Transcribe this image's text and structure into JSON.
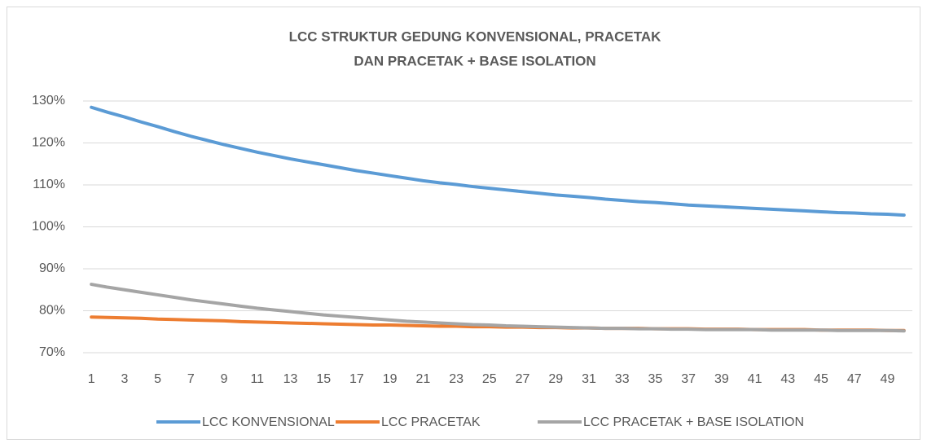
{
  "chart_data": {
    "type": "line",
    "title": [
      "LCC STRUKTUR GEDUNG KONVENSIONAL, PRACETAK",
      "DAN PRACETAK + BASE ISOLATION"
    ],
    "categories": [
      1,
      null,
      3,
      null,
      5,
      null,
      7,
      null,
      9,
      null,
      11,
      null,
      13,
      null,
      15,
      null,
      17,
      null,
      19,
      null,
      21,
      null,
      23,
      null,
      25,
      null,
      27,
      null,
      29,
      null,
      31,
      null,
      33,
      null,
      35,
      null,
      37,
      null,
      39,
      null,
      41,
      null,
      43,
      null,
      45,
      null,
      47,
      null,
      49,
      null
    ],
    "series": [
      {
        "name": "LCC KONVENSIONAL",
        "color": "#5b9bd5",
        "values": [
          128.5,
          127.3,
          126.2,
          125.0,
          123.9,
          122.7,
          121.6,
          120.6,
          119.6,
          118.7,
          117.8,
          117.0,
          116.2,
          115.5,
          114.8,
          114.1,
          113.4,
          112.8,
          112.2,
          111.6,
          111.0,
          110.5,
          110.1,
          109.6,
          109.2,
          108.8,
          108.4,
          108.0,
          107.6,
          107.3,
          107.0,
          106.6,
          106.3,
          106.0,
          105.8,
          105.5,
          105.2,
          105.0,
          104.8,
          104.6,
          104.4,
          104.2,
          104.0,
          103.8,
          103.6,
          103.4,
          103.3,
          103.1,
          103.0,
          102.8
        ]
      },
      {
        "name": "LCC PRACETAK",
        "color": "#ed7d31",
        "values": [
          78.5,
          78.4,
          78.3,
          78.2,
          78.0,
          77.9,
          77.8,
          77.7,
          77.6,
          77.4,
          77.3,
          77.2,
          77.1,
          77.0,
          76.9,
          76.8,
          76.7,
          76.6,
          76.6,
          76.5,
          76.4,
          76.3,
          76.3,
          76.2,
          76.2,
          76.1,
          76.1,
          76.0,
          76.0,
          75.9,
          75.9,
          75.8,
          75.8,
          75.8,
          75.7,
          75.7,
          75.7,
          75.6,
          75.6,
          75.6,
          75.5,
          75.5,
          75.5,
          75.5,
          75.4,
          75.4,
          75.4,
          75.4,
          75.3,
          75.3
        ]
      },
      {
        "name": "LCC PRACETAK + BASE ISOLATION",
        "color": "#a5a5a5",
        "values": [
          86.3,
          85.6,
          85.0,
          84.4,
          83.8,
          83.2,
          82.6,
          82.1,
          81.6,
          81.1,
          80.6,
          80.2,
          79.8,
          79.4,
          79.0,
          78.7,
          78.4,
          78.1,
          77.8,
          77.5,
          77.3,
          77.1,
          76.9,
          76.7,
          76.6,
          76.4,
          76.3,
          76.2,
          76.1,
          76.0,
          75.9,
          75.8,
          75.8,
          75.7,
          75.7,
          75.6,
          75.6,
          75.5,
          75.5,
          75.5,
          75.5,
          75.4,
          75.4,
          75.4,
          75.4,
          75.3,
          75.3,
          75.3,
          75.3,
          75.2
        ]
      }
    ],
    "ylim": [
      70,
      130
    ],
    "yticks": [
      {
        "value": 70,
        "label": "70%"
      },
      {
        "value": 80,
        "label": "80%"
      },
      {
        "value": 90,
        "label": "90%"
      },
      {
        "value": 100,
        "label": "100%"
      },
      {
        "value": 110,
        "label": "110%"
      },
      {
        "value": 120,
        "label": "120%"
      },
      {
        "value": 130,
        "label": "130%"
      }
    ],
    "grid": true,
    "legend": "bottom"
  }
}
